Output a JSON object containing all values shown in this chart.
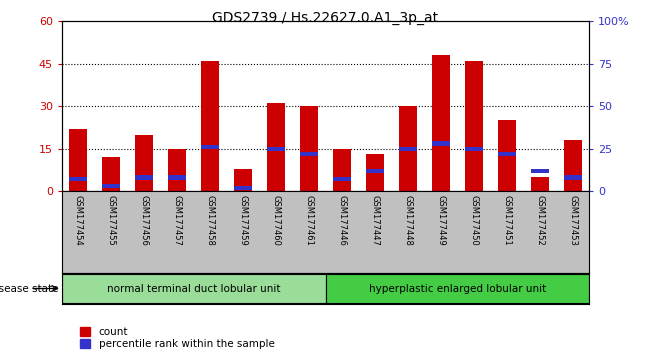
{
  "title": "GDS2739 / Hs.22627.0.A1_3p_at",
  "samples": [
    "GSM177454",
    "GSM177455",
    "GSM177456",
    "GSM177457",
    "GSM177458",
    "GSM177459",
    "GSM177460",
    "GSM177461",
    "GSM177446",
    "GSM177447",
    "GSM177448",
    "GSM177449",
    "GSM177450",
    "GSM177451",
    "GSM177452",
    "GSM177453"
  ],
  "counts": [
    22,
    12,
    20,
    15,
    46,
    8,
    31,
    30,
    15,
    13,
    30,
    48,
    46,
    25,
    5,
    18
  ],
  "percentiles": [
    7,
    3,
    8,
    8,
    26,
    2,
    25,
    22,
    7,
    12,
    25,
    28,
    25,
    22,
    12,
    8
  ],
  "bar_width": 0.55,
  "count_color": "#cc0000",
  "percentile_color": "#3333cc",
  "ylim_left": [
    0,
    60
  ],
  "ylim_right": [
    0,
    100
  ],
  "yticks_left": [
    0,
    15,
    30,
    45,
    60
  ],
  "ytick_labels_left": [
    "0",
    "15",
    "30",
    "45",
    "60"
  ],
  "yticks_right": [
    0,
    25,
    50,
    75,
    100
  ],
  "ytick_labels_right": [
    "0",
    "25",
    "50",
    "75",
    "100%"
  ],
  "group1_label": "normal terminal duct lobular unit",
  "group2_label": "hyperplastic enlarged lobular unit",
  "disease_state_label": "disease state",
  "group1_n": 8,
  "group2_n": 8,
  "group1_color": "#99dd99",
  "group2_color": "#44cc44",
  "legend_count_label": "count",
  "legend_pct_label": "percentile rank within the sample",
  "tick_area_color": "#c0c0c0",
  "background_color": "#ffffff",
  "pct_bar_height": 1.5
}
